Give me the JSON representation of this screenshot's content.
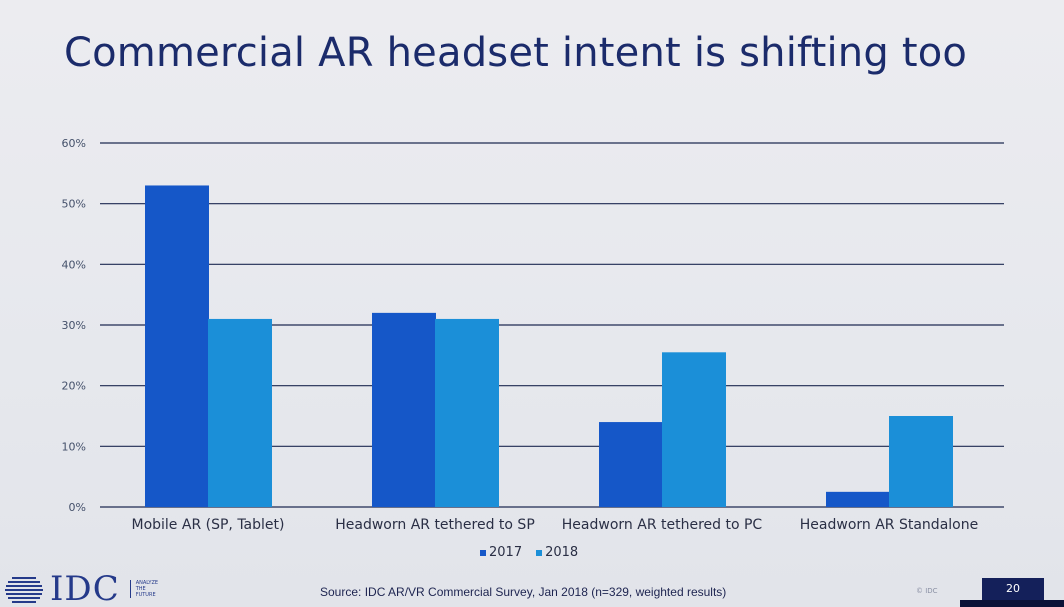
{
  "slide": {
    "title": "Commercial AR headset intent is shifting too",
    "source": "Source: IDC AR/VR Commercial Survey, Jan 2018 (n=329, weighted results)",
    "copyright": "© IDC",
    "page_number": "20"
  },
  "logo": {
    "text": "IDC",
    "tagline": "ANALYZE\nTHE\nFUTURE"
  },
  "colors": {
    "series_2017": "#1557c8",
    "series_2018": "#1b8fd8",
    "gridline": "#1e2a52",
    "title": "#1b2b6b"
  },
  "chart_data": {
    "type": "bar",
    "title": "Commercial AR headset intent is shifting too",
    "categories": [
      "Mobile AR (SP, Tablet)",
      "Headworn AR tethered to SP",
      "Headworn AR tethered to PC",
      "Headworn AR Standalone"
    ],
    "series": [
      {
        "name": "2017",
        "values": [
          53,
          32,
          14,
          2.5
        ]
      },
      {
        "name": "2018",
        "values": [
          31,
          31,
          25.5,
          15
        ]
      }
    ],
    "ylim": [
      0,
      60
    ],
    "yticks": [
      "0%",
      "10%",
      "20%",
      "30%",
      "40%",
      "50%",
      "60%"
    ],
    "xlabel": "",
    "ylabel": "",
    "grid": true,
    "legend_position": "bottom-center"
  }
}
